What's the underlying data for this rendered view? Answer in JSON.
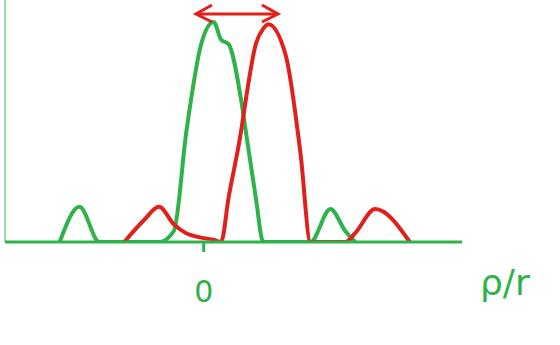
{
  "chart_data": {
    "type": "line",
    "x_label": "ρ/r",
    "x": [
      -2.9,
      -2.5,
      -2.1,
      -1.6,
      -1.2,
      -0.9,
      -0.6,
      -0.35,
      -0.05,
      0.2,
      0.35,
      0.5,
      0.75,
      0.85,
      1.05,
      1.2,
      1.3,
      1.65,
      1.95,
      2.15,
      2.55,
      2.85,
      3.05,
      3.45,
      4.15
    ],
    "series": [
      {
        "color": "#2db34a",
        "values": [
          0,
          0.16,
          0,
          0,
          0,
          0,
          0.05,
          0.5,
          0.9,
          1,
          0.92,
          0.9,
          0.65,
          0.5,
          0.2,
          0,
          0,
          0,
          0,
          0,
          0.15,
          0.05,
          0,
          null,
          null
        ]
      },
      {
        "color": "#e0201b",
        "values": [
          null,
          null,
          null,
          0,
          0.1,
          0.16,
          0.08,
          0.04,
          0.02,
          0.01,
          0,
          0.2,
          0.5,
          0.65,
          0.9,
          0.97,
          0.99,
          0.85,
          0.4,
          0,
          0,
          0,
          0.04,
          0.15,
          0
        ]
      }
    ],
    "xlim": [
      -4,
      5.2
    ],
    "xticks": [
      0
    ],
    "ylim": [
      0,
      1.1
    ],
    "tick_labels": "x"
  }
}
